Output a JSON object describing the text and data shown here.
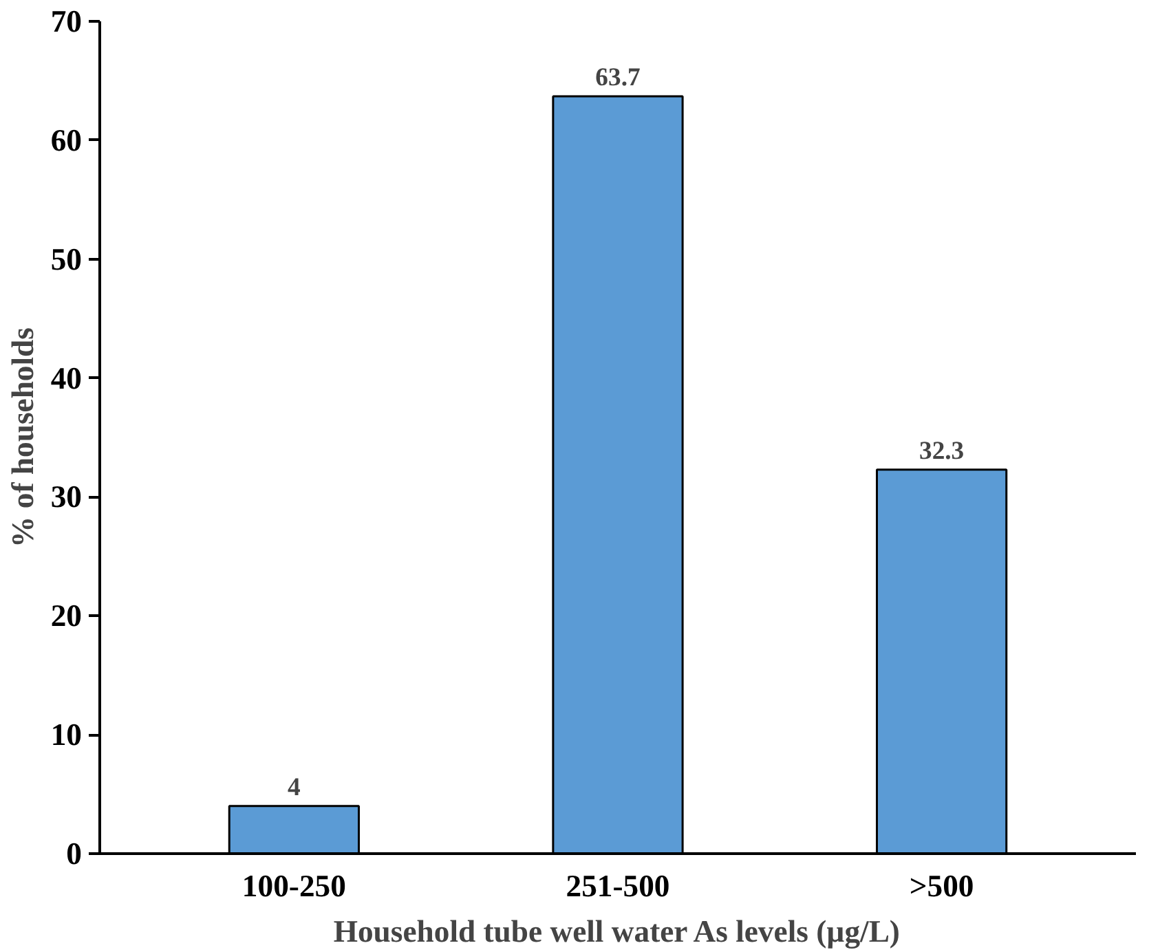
{
  "chart_data": {
    "type": "bar",
    "xlabel": "Household tube well water As levels (µg/L)",
    "ylabel": "% of households",
    "categories": [
      "100-250",
      "251-500",
      ">500"
    ],
    "values": [
      4,
      63.7,
      32.3
    ],
    "color": "#5b9bd5",
    "ylim": [
      0,
      70
    ],
    "yticks": [
      0,
      10,
      20,
      30,
      40,
      50,
      60,
      70
    ],
    "grid": false,
    "data_labels": true
  }
}
